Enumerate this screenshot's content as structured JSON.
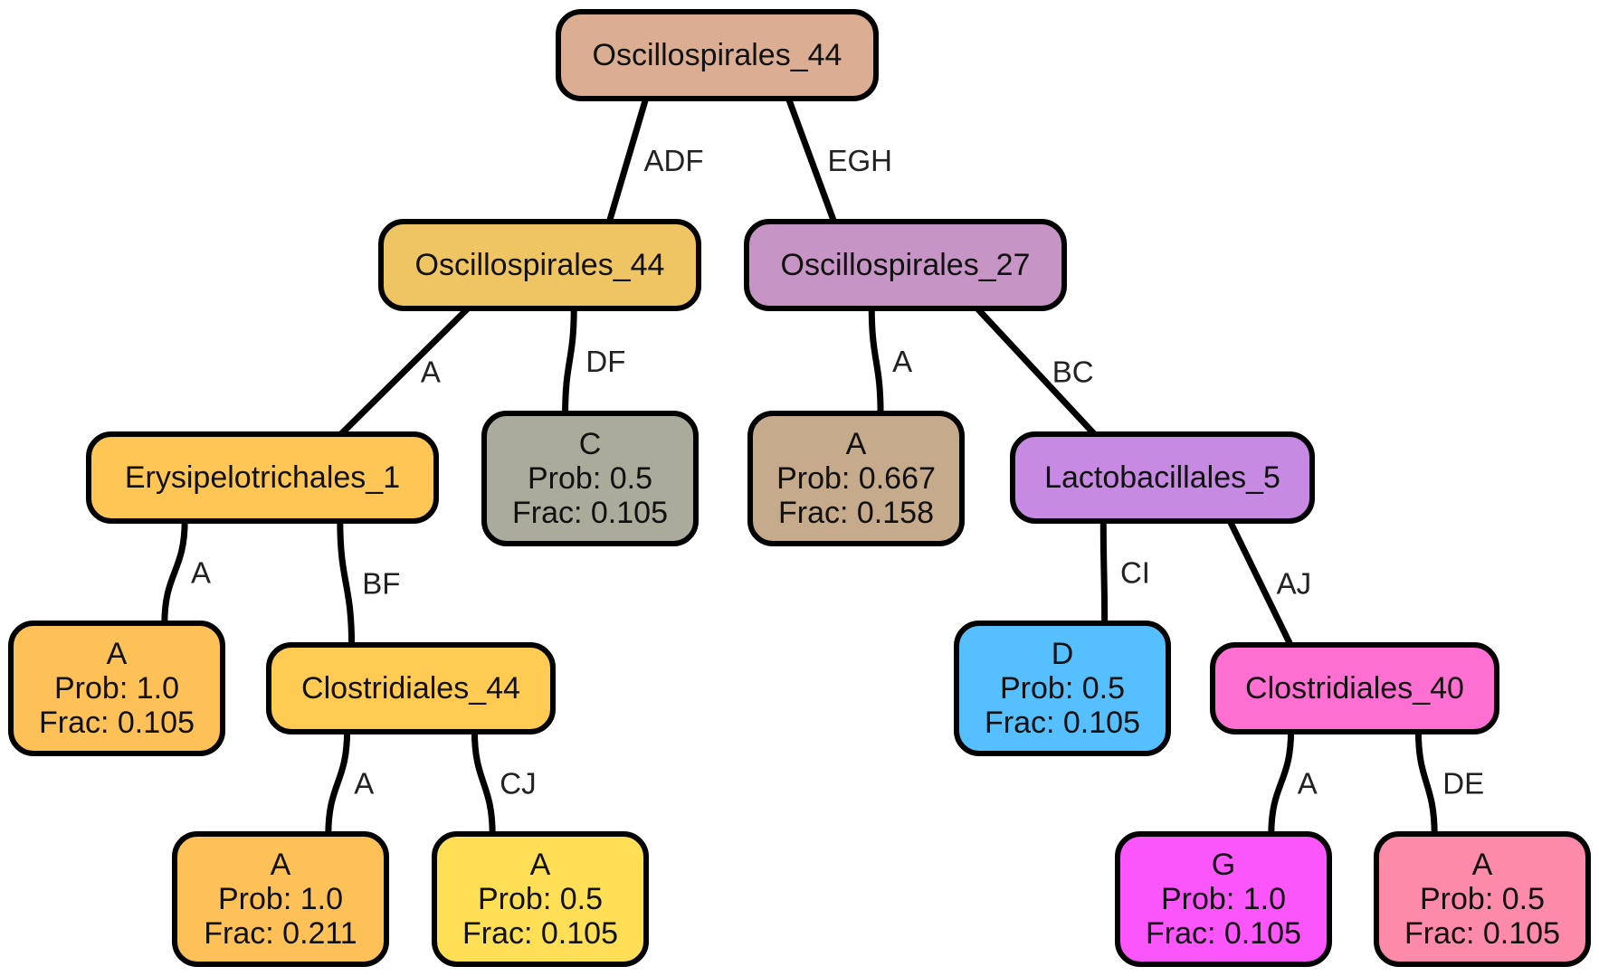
{
  "nodes": {
    "root": {
      "color": "#DBAE93",
      "lines": [
        "Oscillospirales_44"
      ]
    },
    "n_osc44": {
      "color": "#EFC462",
      "lines": [
        "Oscillospirales_44"
      ]
    },
    "n_osc27": {
      "color": "#C795C5",
      "lines": [
        "Oscillospirales_27"
      ]
    },
    "n_erys1": {
      "color": "#FEC655",
      "lines": [
        "Erysipelotrichales_1"
      ]
    },
    "leaf_c": {
      "color": "#ABAB9B",
      "lines": [
        "C",
        "Prob: 0.5",
        "Frac: 0.105"
      ]
    },
    "leaf_a_0667": {
      "color": "#C6AA8C",
      "lines": [
        "A",
        "Prob: 0.667",
        "Frac: 0.158"
      ]
    },
    "n_lacto5": {
      "color": "#C78AE3",
      "lines": [
        "Lactobacillales_5"
      ]
    },
    "leaf_a_1_left": {
      "color": "#FEC157",
      "lines": [
        "A",
        "Prob: 1.0",
        "Frac: 0.105"
      ]
    },
    "n_clos44": {
      "color": "#FFCB53",
      "lines": [
        "Clostridiales_44"
      ]
    },
    "leaf_d": {
      "color": "#56BFFD",
      "lines": [
        "D",
        "Prob: 0.5",
        "Frac: 0.105"
      ]
    },
    "n_clos40": {
      "color": "#FE6FD2",
      "lines": [
        "Clostridiales_40"
      ]
    },
    "leaf_a_1_0211": {
      "color": "#FEC157",
      "lines": [
        "A",
        "Prob: 1.0",
        "Frac: 0.211"
      ]
    },
    "leaf_a_05_yellow": {
      "color": "#FFDF55",
      "lines": [
        "A",
        "Prob: 0.5",
        "Frac: 0.105"
      ]
    },
    "leaf_g": {
      "color": "#FB56FB",
      "lines": [
        "G",
        "Prob: 1.0",
        "Frac: 0.105"
      ]
    },
    "leaf_a_05_pink": {
      "color": "#FE8AA9",
      "lines": [
        "A",
        "Prob: 0.5",
        "Frac: 0.105"
      ]
    }
  },
  "edges": [
    {
      "from": "root",
      "to": "n_osc44",
      "label": "ADF"
    },
    {
      "from": "root",
      "to": "n_osc27",
      "label": "EGH"
    },
    {
      "from": "n_osc44",
      "to": "n_erys1",
      "label": "A"
    },
    {
      "from": "n_osc44",
      "to": "leaf_c",
      "label": "DF"
    },
    {
      "from": "n_osc27",
      "to": "leaf_a_0667",
      "label": "A"
    },
    {
      "from": "n_osc27",
      "to": "n_lacto5",
      "label": "BC"
    },
    {
      "from": "n_erys1",
      "to": "leaf_a_1_left",
      "label": "A"
    },
    {
      "from": "n_erys1",
      "to": "n_clos44",
      "label": "BF"
    },
    {
      "from": "n_lacto5",
      "to": "leaf_d",
      "label": "CI"
    },
    {
      "from": "n_lacto5",
      "to": "n_clos40",
      "label": "AJ"
    },
    {
      "from": "n_clos44",
      "to": "leaf_a_1_0211",
      "label": "A"
    },
    {
      "from": "n_clos44",
      "to": "leaf_a_05_yellow",
      "label": "CJ"
    },
    {
      "from": "n_clos40",
      "to": "leaf_g",
      "label": "A"
    },
    {
      "from": "n_clos40",
      "to": "leaf_a_05_pink",
      "label": "DE"
    }
  ]
}
